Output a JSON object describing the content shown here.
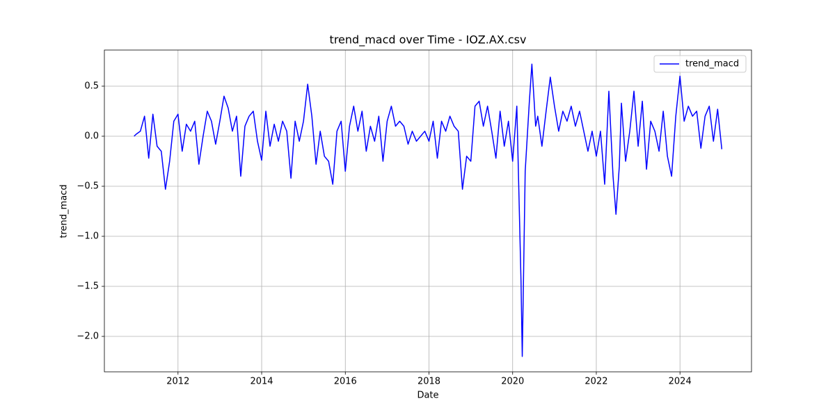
{
  "chart_data": {
    "type": "line",
    "title": "trend_macd over Time - IOZ.AX.csv",
    "xlabel": "Date",
    "ylabel": "trend_macd",
    "x": [
      2010.95,
      2011.0,
      2011.1,
      2011.2,
      2011.3,
      2011.4,
      2011.5,
      2011.6,
      2011.7,
      2011.8,
      2011.9,
      2012.0,
      2012.1,
      2012.2,
      2012.3,
      2012.4,
      2012.5,
      2012.6,
      2012.7,
      2012.8,
      2012.9,
      2013.0,
      2013.1,
      2013.2,
      2013.3,
      2013.4,
      2013.5,
      2013.6,
      2013.7,
      2013.8,
      2013.9,
      2014.0,
      2014.1,
      2014.2,
      2014.3,
      2014.4,
      2014.5,
      2014.6,
      2014.7,
      2014.8,
      2014.9,
      2015.0,
      2015.1,
      2015.2,
      2015.3,
      2015.4,
      2015.5,
      2015.6,
      2015.7,
      2015.8,
      2015.9,
      2016.0,
      2016.1,
      2016.2,
      2016.3,
      2016.4,
      2016.5,
      2016.6,
      2016.7,
      2016.8,
      2016.9,
      2017.0,
      2017.1,
      2017.2,
      2017.3,
      2017.4,
      2017.5,
      2017.6,
      2017.7,
      2017.8,
      2017.9,
      2018.0,
      2018.1,
      2018.2,
      2018.3,
      2018.4,
      2018.5,
      2018.6,
      2018.7,
      2018.8,
      2018.9,
      2019.0,
      2019.1,
      2019.2,
      2019.3,
      2019.4,
      2019.5,
      2019.6,
      2019.7,
      2019.8,
      2019.9,
      2020.0,
      2020.1,
      2020.2,
      2020.23,
      2020.3,
      2020.4,
      2020.46,
      2020.55,
      2020.6,
      2020.7,
      2020.8,
      2020.9,
      2021.0,
      2021.1,
      2021.2,
      2021.3,
      2021.4,
      2021.5,
      2021.6,
      2021.7,
      2021.8,
      2021.9,
      2022.0,
      2022.1,
      2022.2,
      2022.3,
      2022.4,
      2022.47,
      2022.55,
      2022.6,
      2022.7,
      2022.8,
      2022.9,
      2023.0,
      2023.1,
      2023.2,
      2023.3,
      2023.4,
      2023.5,
      2023.6,
      2023.7,
      2023.8,
      2023.9,
      2024.0,
      2024.1,
      2024.2,
      2024.3,
      2024.4,
      2024.5,
      2024.6,
      2024.7,
      2024.8,
      2024.9,
      2025.0
    ],
    "series": [
      {
        "name": "trend_macd",
        "color": "blue",
        "values": [
          0.0,
          0.02,
          0.05,
          0.2,
          -0.22,
          0.22,
          -0.1,
          -0.15,
          -0.53,
          -0.25,
          0.15,
          0.22,
          -0.15,
          0.12,
          0.05,
          0.15,
          -0.28,
          0.0,
          0.25,
          0.15,
          -0.08,
          0.15,
          0.4,
          0.28,
          0.05,
          0.2,
          -0.4,
          0.1,
          0.2,
          0.25,
          -0.05,
          -0.24,
          0.25,
          -0.1,
          0.12,
          -0.05,
          0.15,
          0.05,
          -0.42,
          0.15,
          -0.05,
          0.15,
          0.52,
          0.2,
          -0.28,
          0.05,
          -0.2,
          -0.25,
          -0.48,
          0.05,
          0.15,
          -0.35,
          0.1,
          0.3,
          0.05,
          0.25,
          -0.15,
          0.1,
          -0.05,
          0.2,
          -0.25,
          0.15,
          0.3,
          0.1,
          0.15,
          0.1,
          -0.08,
          0.05,
          -0.05,
          0.0,
          0.05,
          -0.05,
          0.15,
          -0.22,
          0.15,
          0.05,
          0.2,
          0.1,
          0.05,
          -0.53,
          -0.2,
          -0.25,
          0.3,
          0.35,
          0.1,
          0.3,
          0.05,
          -0.22,
          0.25,
          -0.1,
          0.15,
          -0.25,
          0.3,
          -1.45,
          -2.2,
          -0.35,
          0.35,
          0.72,
          0.1,
          0.2,
          -0.1,
          0.25,
          0.59,
          0.3,
          0.05,
          0.25,
          0.15,
          0.3,
          0.1,
          0.25,
          0.05,
          -0.15,
          0.05,
          -0.2,
          0.05,
          -0.48,
          0.45,
          -0.4,
          -0.78,
          -0.3,
          0.33,
          -0.25,
          0.05,
          0.45,
          -0.1,
          0.35,
          -0.33,
          0.15,
          0.05,
          -0.15,
          0.25,
          -0.2,
          -0.4,
          0.2,
          0.6,
          0.15,
          0.3,
          0.2,
          0.25,
          -0.12,
          0.2,
          0.3,
          -0.05,
          0.27,
          -0.13
        ]
      }
    ],
    "xlim": [
      2010.24,
      2025.71
    ],
    "ylim": [
      -2.354,
      0.861
    ],
    "xticks": [
      2012,
      2014,
      2016,
      2018,
      2020,
      2022,
      2024
    ],
    "yticks": [
      {
        "value": -2.0,
        "label": "−2.0"
      },
      {
        "value": -1.5,
        "label": "−1.5"
      },
      {
        "value": -1.0,
        "label": "−1.0"
      },
      {
        "value": -0.5,
        "label": "−0.5"
      },
      {
        "value": 0.0,
        "label": "0.0"
      },
      0.5
    ],
    "grid": true,
    "legend": "upper right"
  }
}
